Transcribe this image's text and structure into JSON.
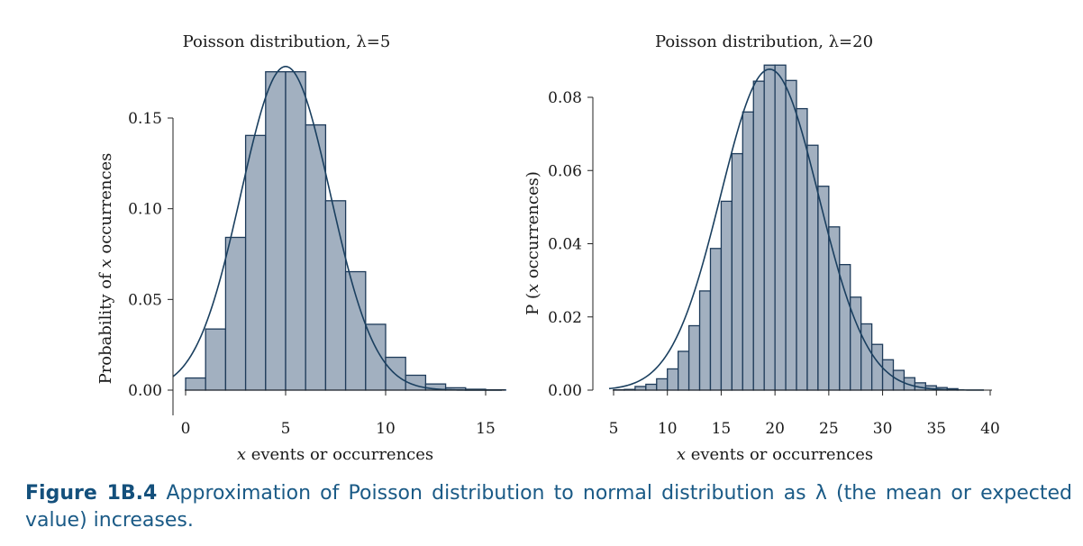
{
  "colors": {
    "bar_fill": "#a2b0c0",
    "bar_stroke": "#1e3b5a",
    "curve": "#1a3f5f",
    "caption": "#1a5a86"
  },
  "chart_data": [
    {
      "type": "bar",
      "overlay": "normal-curve",
      "title": "Poisson distribution, λ=5",
      "xlabel": "x events or occurrences",
      "ylabel": "Probability of x occurrences",
      "xlim": [
        0,
        16
      ],
      "ylim": [
        0,
        0.18
      ],
      "xticks": [
        0,
        5,
        10,
        15
      ],
      "yticks": [
        0,
        0.05,
        0.1,
        0.15
      ],
      "xtick_labels": [
        "0",
        "5",
        "10",
        "15"
      ],
      "ytick_labels": [
        "0.00",
        "0.05",
        "0.10",
        "0.15"
      ],
      "categories": [
        0,
        1,
        2,
        3,
        4,
        5,
        6,
        7,
        8,
        9,
        10,
        11,
        12,
        13,
        14,
        15
      ],
      "values": [
        0.0067,
        0.0337,
        0.0842,
        0.1404,
        0.1755,
        0.1755,
        0.1462,
        0.1044,
        0.0653,
        0.0363,
        0.0181,
        0.0082,
        0.0034,
        0.0013,
        0.0005,
        0.0002
      ],
      "curve": {
        "mean": 5,
        "sd": 2.236
      },
      "grid": false
    },
    {
      "type": "bar",
      "overlay": "normal-curve",
      "title": "Poisson distribution, λ=20",
      "xlabel": "x events or occurrences",
      "ylabel": "P (x occurrences)",
      "xlim": [
        4.5,
        40
      ],
      "ylim": [
        0,
        0.09
      ],
      "xticks": [
        5,
        10,
        15,
        20,
        25,
        30,
        35,
        40
      ],
      "yticks": [
        0,
        0.02,
        0.04,
        0.06,
        0.08
      ],
      "xtick_labels": [
        "5",
        "10",
        "15",
        "20",
        "25",
        "30",
        "35",
        "40"
      ],
      "ytick_labels": [
        "0.00",
        "0.02",
        "0.04",
        "0.06",
        "0.08"
      ],
      "categories": [
        5,
        6,
        7,
        8,
        9,
        10,
        11,
        12,
        13,
        14,
        15,
        16,
        17,
        18,
        19,
        20,
        21,
        22,
        23,
        24,
        25,
        26,
        27,
        28,
        29,
        30,
        31,
        32,
        33,
        34,
        35,
        36
      ],
      "values": [
        0.0001,
        0.0002,
        0.001,
        0.0016,
        0.0031,
        0.0058,
        0.0106,
        0.0176,
        0.0271,
        0.0387,
        0.0516,
        0.0646,
        0.076,
        0.0844,
        0.0888,
        0.0888,
        0.0846,
        0.0769,
        0.0669,
        0.0557,
        0.0446,
        0.0343,
        0.0254,
        0.0181,
        0.0125,
        0.0083,
        0.0054,
        0.0034,
        0.002,
        0.0012,
        0.0007,
        0.0004
      ],
      "curve": {
        "mean": 19.5,
        "sd": 4.55
      },
      "grid": false
    }
  ],
  "caption": {
    "label": "Figure 1B.4",
    "text": " Approximation of Poisson distribution to normal distribution as λ (the mean or expected value) increases."
  }
}
